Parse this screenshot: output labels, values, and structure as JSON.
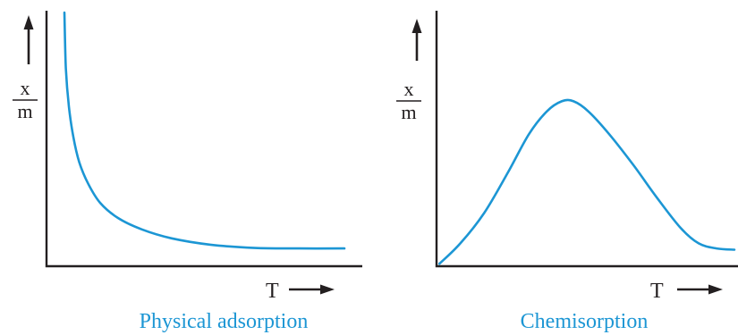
{
  "colors": {
    "curve": "#1c96d4",
    "caption": "#1c96d4",
    "axis": "#231f20"
  },
  "chart_data": [
    {
      "type": "line",
      "caption": "Physical adsorption",
      "xlabel": "T",
      "ylabel_numerator": "x",
      "ylabel_denominator": "m",
      "x_axis_arrow": true,
      "y_axis_arrow": true,
      "grid": false,
      "xlim": [
        0,
        10
      ],
      "ylim": [
        0,
        10
      ],
      "x": [
        0.6,
        0.65,
        0.75,
        0.9,
        1.1,
        1.4,
        1.8,
        2.4,
        3.2,
        4.2,
        5.5,
        7.0,
        8.5,
        10.0
      ],
      "y": [
        10.0,
        7.8,
        6.3,
        5.1,
        4.1,
        3.25,
        2.5,
        1.9,
        1.45,
        1.1,
        0.85,
        0.72,
        0.7,
        0.7
      ]
    },
    {
      "type": "line",
      "caption": "Chemisorption",
      "xlabel": "T",
      "ylabel_numerator": "x",
      "ylabel_denominator": "m",
      "x_axis_arrow": true,
      "y_axis_arrow": true,
      "grid": false,
      "xlim": [
        0,
        10
      ],
      "ylim": [
        0,
        10
      ],
      "x": [
        0.1,
        0.8,
        1.6,
        2.4,
        3.1,
        3.7,
        4.2,
        4.6,
        5.1,
        5.8,
        6.6,
        7.4,
        8.2,
        8.8,
        9.4,
        10.0
      ],
      "y": [
        0.1,
        0.9,
        2.1,
        3.7,
        5.2,
        6.1,
        6.5,
        6.5,
        6.1,
        5.2,
        4.0,
        2.7,
        1.5,
        0.9,
        0.7,
        0.65
      ]
    }
  ]
}
